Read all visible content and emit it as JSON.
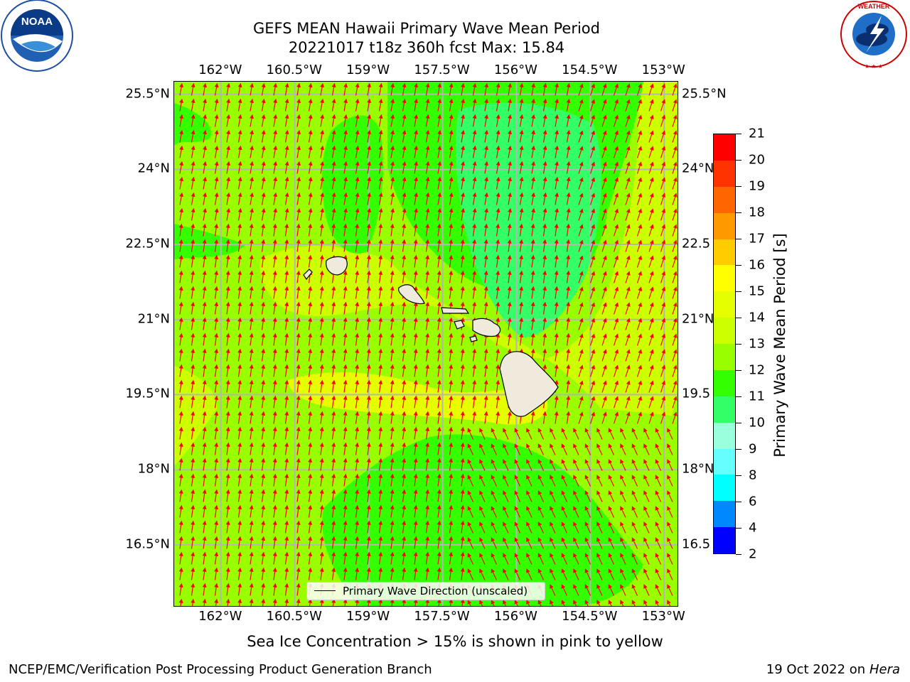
{
  "header": {
    "title_line1": "GEFS MEAN Hawaii Primary Wave Mean Period",
    "title_line2": "20221017 t18z 360h fcst   Max: 15.84"
  },
  "logos": {
    "noaa": {
      "name": "noaa-logo",
      "text": "NOAA",
      "ring_text": "NATIONAL OCEANIC AND ATMOSPHERIC ADMINISTRATION · U.S. DEPARTMENT OF COMMERCE"
    },
    "nws": {
      "name": "national-weather-service-logo",
      "ring_text": "NATIONAL WEATHER SERVICE"
    }
  },
  "map": {
    "lon_labels": [
      "162°W",
      "160.5°W",
      "159°W",
      "157.5°W",
      "156°W",
      "154.5°W",
      "153°W"
    ],
    "lat_labels_left": [
      "25.5°N",
      "24°N",
      "22.5°N",
      "21°N",
      "19.5°N",
      "18°N",
      "16.5°N"
    ],
    "lat_labels_right": [
      "25.5°N",
      "24°N",
      "22.5",
      "21°N",
      "19.5",
      "18°N",
      "16.5"
    ],
    "lon_values": [
      -162,
      -160.5,
      -159,
      -157.5,
      -156,
      -154.5,
      -153
    ],
    "lat_values": [
      25.5,
      24,
      22.5,
      21,
      19.5,
      18,
      16.5
    ],
    "extent": {
      "lon_min": -162.95,
      "lon_max": -152.7,
      "lat_min": 15.25,
      "lat_max": 25.75
    },
    "arrow_color": "#ff0000",
    "land_color": "#efeadb",
    "legend_label": "Primary Wave Direction (unscaled)"
  },
  "colorbar": {
    "title": "Primary Wave Mean Period [s]",
    "labels": [
      "21",
      "20",
      "19",
      "18",
      "17",
      "16",
      "15",
      "14",
      "13",
      "12",
      "11",
      "10",
      "9",
      "8",
      "6",
      "4",
      "2"
    ],
    "colors": [
      "#ff0000",
      "#ff3300",
      "#ff6600",
      "#ff9900",
      "#ffcc00",
      "#ffff00",
      "#e5ff00",
      "#ccff00",
      "#99ff00",
      "#33ff00",
      "#33ff66",
      "#99ffdd",
      "#66ffff",
      "#00ffff",
      "#0088ff",
      "#0000ff"
    ]
  },
  "footer": {
    "note": "Sea Ice Concentration > 15% is shown in pink to yellow",
    "credit": "NCEP/EMC/Verification Post Processing Product Generation Branch",
    "date": "19 Oct 2022 on ",
    "machine": "Hera"
  }
}
